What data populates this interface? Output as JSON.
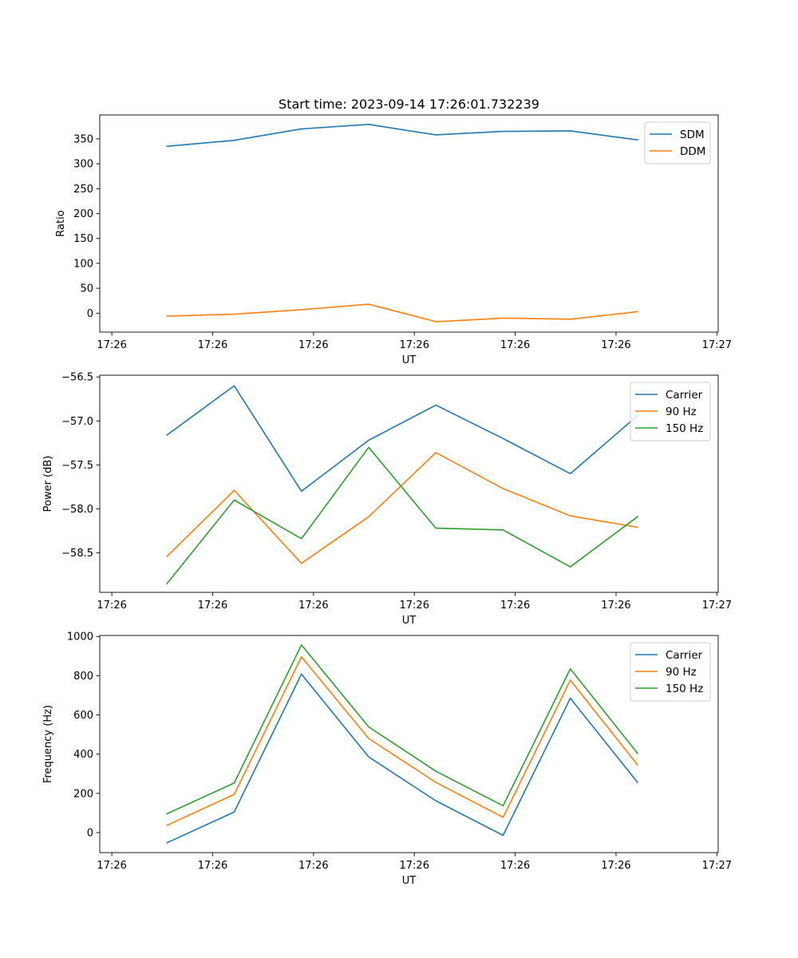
{
  "figure": {
    "title": "Start time: 2023-09-14 17:26:01.732239"
  },
  "colors": {
    "blue": "#1f77b4",
    "orange": "#ff7f0e",
    "green": "#2ca02c"
  },
  "chart_data": [
    {
      "type": "line",
      "title": "Start time: 2023-09-14 17:26:01.732239",
      "xlabel": "UT",
      "ylabel": "Ratio",
      "x_index": [
        1,
        2,
        3,
        4,
        5,
        6,
        7,
        8
      ],
      "xlim": [
        0,
        9.2
      ],
      "xticks": [
        0.18,
        1.68,
        3.18,
        4.68,
        6.18,
        7.68,
        9.18
      ],
      "xticklabels": [
        "17:26",
        "17:26",
        "17:26",
        "17:26",
        "17:26",
        "17:26",
        "17:27"
      ],
      "ylim": [
        -38,
        398
      ],
      "yticks": [
        0,
        50,
        100,
        150,
        200,
        250,
        300,
        350
      ],
      "yticklabels": [
        "0",
        "50",
        "100",
        "150",
        "200",
        "250",
        "300",
        "350"
      ],
      "legend": "top-right",
      "series": [
        {
          "name": "SDM",
          "color": "#1f77b4",
          "values": [
            335,
            347,
            370,
            379,
            358,
            365,
            366,
            348
          ]
        },
        {
          "name": "DDM",
          "color": "#ff7f0e",
          "values": [
            -6,
            -2,
            7,
            18,
            -17,
            -10,
            -12,
            3
          ]
        }
      ]
    },
    {
      "type": "line",
      "title": "",
      "xlabel": "UT",
      "ylabel": "Power (dB)",
      "x_index": [
        1,
        2,
        3,
        4,
        5,
        6,
        7,
        8
      ],
      "xlim": [
        0,
        9.2
      ],
      "xticks": [
        0.18,
        1.68,
        3.18,
        4.68,
        6.18,
        7.68,
        9.18
      ],
      "xticklabels": [
        "17:26",
        "17:26",
        "17:26",
        "17:26",
        "17:26",
        "17:26",
        "17:27"
      ],
      "ylim": [
        -58.95,
        -56.48
      ],
      "yticks": [
        -58.5,
        -58.0,
        -57.5,
        -57.0,
        -56.5
      ],
      "yticklabels": [
        "−58.5",
        "−58.0",
        "−57.5",
        "−57.0",
        "−56.5"
      ],
      "legend": "top-right",
      "series": [
        {
          "name": "Carrier",
          "color": "#1f77b4",
          "values": [
            -57.16,
            -56.6,
            -57.8,
            -57.22,
            -56.82,
            -57.2,
            -57.6,
            -56.94
          ]
        },
        {
          "name": "90 Hz",
          "color": "#ff7f0e",
          "values": [
            -58.54,
            -57.79,
            -58.62,
            -58.09,
            -57.36,
            -57.77,
            -58.08,
            -58.21
          ]
        },
        {
          "name": "150 Hz",
          "color": "#2ca02c",
          "values": [
            -58.85,
            -57.9,
            -58.34,
            -57.3,
            -58.22,
            -58.24,
            -58.66,
            -58.09
          ]
        }
      ]
    },
    {
      "type": "line",
      "title": "",
      "xlabel": "UT",
      "ylabel": "Frequency (Hz)",
      "x_index": [
        1,
        2,
        3,
        4,
        5,
        6,
        7,
        8
      ],
      "xlim": [
        0,
        9.2
      ],
      "xticks": [
        0.18,
        1.68,
        3.18,
        4.68,
        6.18,
        7.68,
        9.18
      ],
      "xticklabels": [
        "17:26",
        "17:26",
        "17:26",
        "17:26",
        "17:26",
        "17:26",
        "17:27"
      ],
      "ylim": [
        -102,
        1005
      ],
      "yticks": [
        0,
        200,
        400,
        600,
        800,
        1000
      ],
      "yticklabels": [
        "0",
        "200",
        "400",
        "600",
        "800",
        "1000"
      ],
      "legend": "top-right",
      "series": [
        {
          "name": "Carrier",
          "color": "#1f77b4",
          "values": [
            -52,
            105,
            808,
            386,
            162,
            -14,
            685,
            256
          ]
        },
        {
          "name": "90 Hz",
          "color": "#ff7f0e",
          "values": [
            37,
            195,
            896,
            480,
            256,
            78,
            777,
            345
          ]
        },
        {
          "name": "150 Hz",
          "color": "#2ca02c",
          "values": [
            96,
            253,
            957,
            539,
            313,
            137,
            835,
            404
          ]
        }
      ]
    }
  ]
}
